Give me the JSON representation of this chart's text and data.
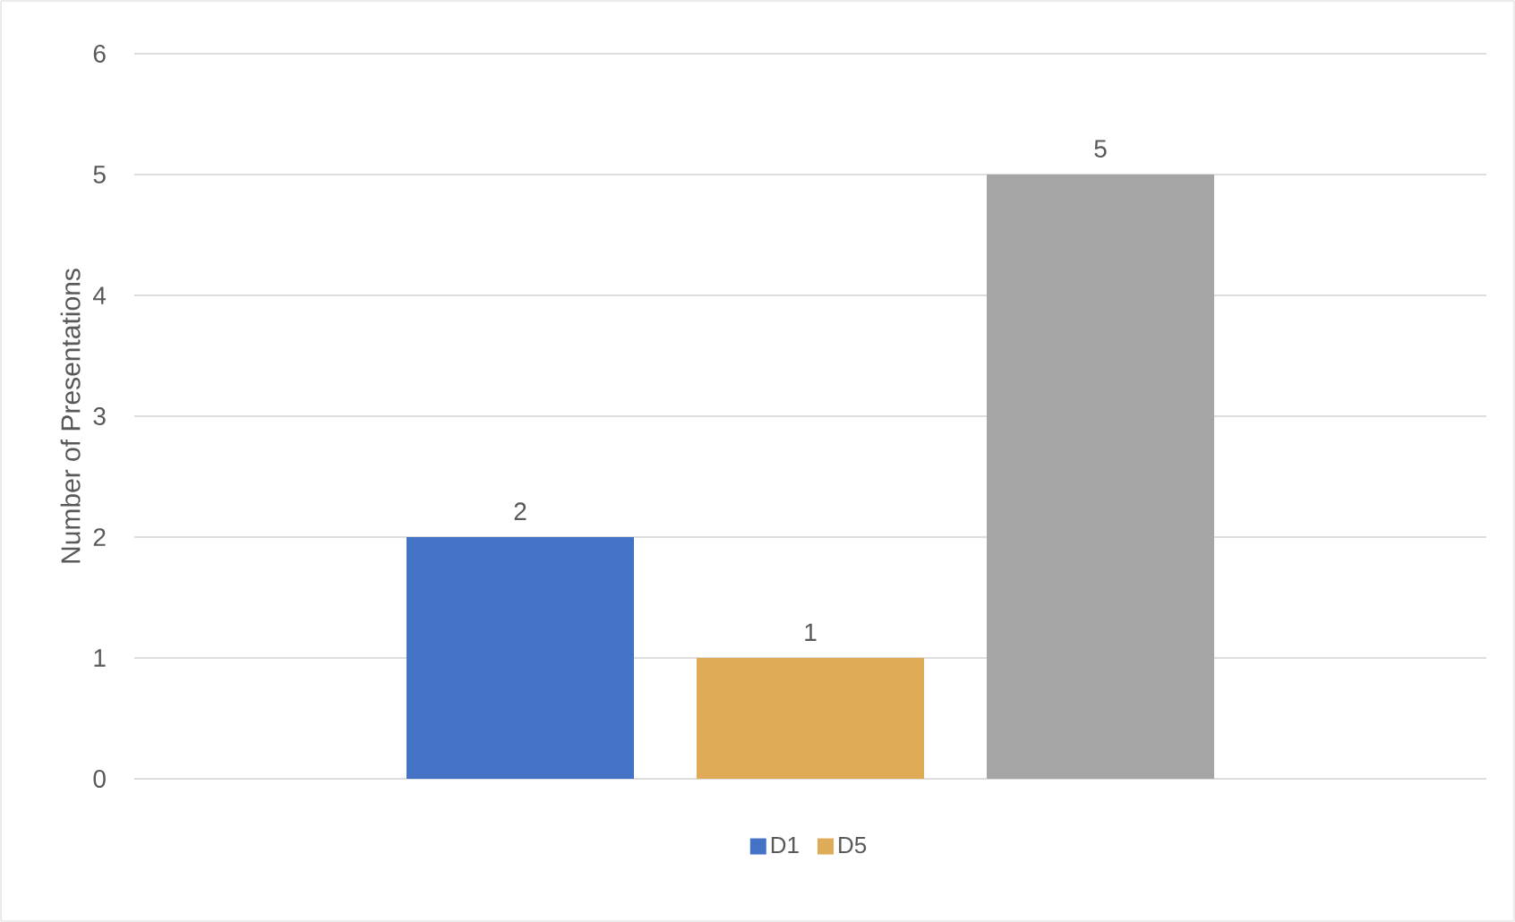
{
  "chart_data": {
    "type": "bar",
    "ylabel": "Number of Presentations",
    "categories": [
      null
    ],
    "series": [
      {
        "name": "D1",
        "color": "#4472c4",
        "values": [
          2
        ]
      },
      {
        "name": "D5",
        "color": "#dfab56",
        "values": [
          1
        ]
      },
      {
        "color": "#a5a5a5",
        "values": [
          5
        ]
      }
    ],
    "ylim": [
      0,
      6
    ],
    "yticks": [
      0,
      1,
      2,
      3,
      4,
      5,
      6
    ],
    "grid": "y",
    "legend": "bottom",
    "data_labels": true
  }
}
